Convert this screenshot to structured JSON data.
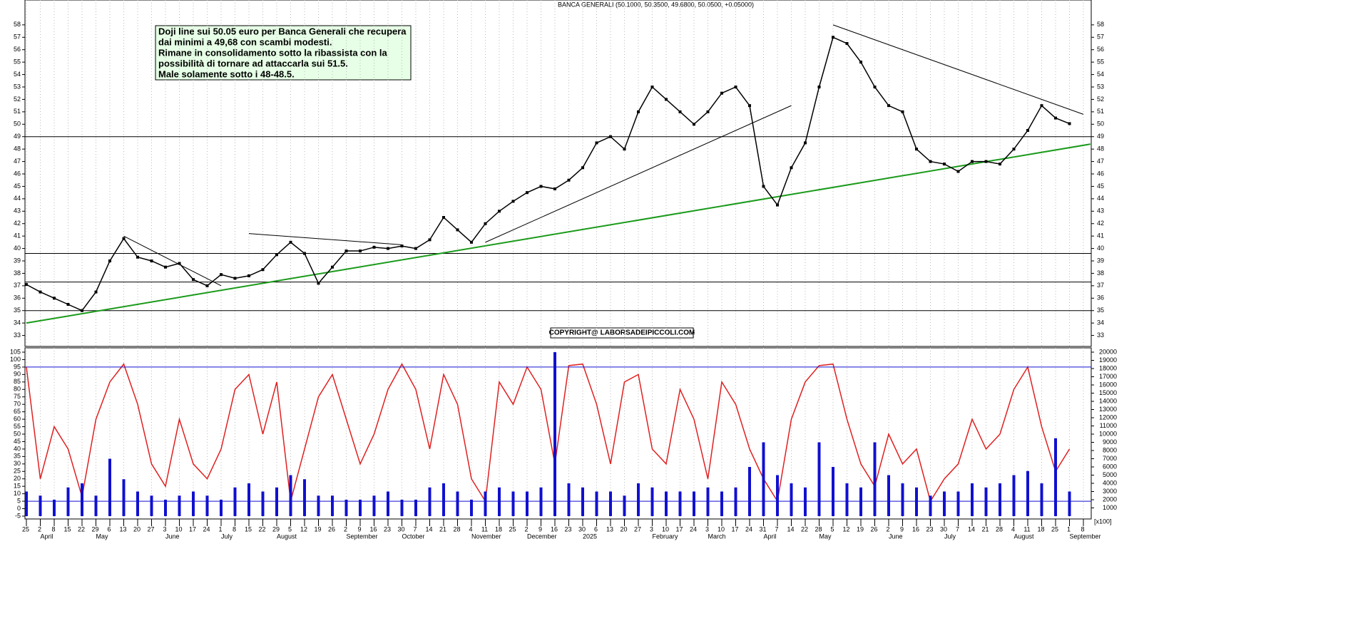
{
  "chart_data": [
    {
      "type": "line",
      "title": "BANCA GENERALI (50.1000, 50.3500, 49.6800, 50.0500, +0.05000)",
      "color": "#000000",
      "values": [
        37.1,
        36.5,
        36.0,
        35.5,
        35.0,
        36.5,
        39.0,
        40.8,
        39.3,
        39.0,
        38.5,
        38.8,
        37.5,
        37.0,
        37.9,
        37.6,
        37.8,
        38.3,
        39.5,
        40.5,
        39.6,
        37.2,
        38.5,
        39.8,
        39.8,
        40.1,
        40.0,
        40.2,
        40.0,
        40.7,
        42.5,
        41.5,
        40.5,
        42.0,
        43.0,
        43.8,
        44.5,
        45.0,
        44.8,
        45.5,
        46.5,
        48.5,
        49.0,
        48.0,
        51.0,
        53.0,
        52.0,
        51.0,
        50.0,
        51.0,
        52.5,
        53.0,
        51.5,
        45.0,
        43.5,
        46.5,
        48.5,
        53.0,
        57.0,
        56.5,
        55.0,
        53.0,
        51.5,
        51.0,
        48.0,
        47.0,
        46.8,
        46.2,
        47.0,
        47.0,
        46.8,
        48.0,
        49.5,
        51.5,
        50.5,
        50.05,
        null
      ],
      "ylim": [
        32,
        60
      ],
      "yticks": [
        33,
        34,
        35,
        36,
        37,
        38,
        39,
        40,
        41,
        42,
        43,
        44,
        45,
        46,
        47,
        48,
        49,
        50,
        51,
        52,
        53,
        54,
        55,
        56,
        57,
        58
      ],
      "levels": [
        39.6,
        37.3,
        35.0,
        49.0
      ],
      "trendlines": [
        {
          "color": "#1a9a1a",
          "points": [
            [
              0,
              34.0
            ],
            [
              76.5,
              48.4
            ]
          ]
        },
        {
          "color": "#000000",
          "points": [
            [
              33,
              40.5
            ],
            [
              55,
              51.5
            ]
          ]
        },
        {
          "color": "#000000",
          "points": [
            [
              58,
              58.0
            ],
            [
              76,
              50.8
            ]
          ]
        },
        {
          "color": "#000000",
          "points": [
            [
              7,
              41.0
            ],
            [
              14,
              37.0
            ]
          ]
        },
        {
          "color": "#000000",
          "points": [
            [
              16,
              41.2
            ],
            [
              27,
              40.3
            ]
          ]
        }
      ],
      "annotations": [
        "Doji line sui 50.05 euro per Banca Generali che recupera",
        "dai minimi a 49,68 con scambi modesti.",
        "Rimane in consolidamento sotto la ribassista con la",
        "possibilità di tornare ad attaccarla sui 51.5.",
        "Male solamente sotto i 48-48.5."
      ],
      "copyright": "COPYRIGHT@ LABORSADEIPICCOLI.COM"
    },
    {
      "type": "line",
      "categories": [
        "25",
        "2",
        "8",
        "15",
        "22",
        "29",
        "6",
        "13",
        "20",
        "27",
        "3",
        "10",
        "17",
        "24",
        "1",
        "8",
        "15",
        "22",
        "29",
        "5",
        "12",
        "19",
        "26",
        "2",
        "9",
        "16",
        "23",
        "30",
        "7",
        "14",
        "21",
        "28",
        "4",
        "11",
        "18",
        "25",
        "2",
        "9",
        "16",
        "23",
        "30",
        "6",
        "13",
        "20",
        "27",
        "3",
        "10",
        "17",
        "24",
        "3",
        "10",
        "17",
        "24",
        "31",
        "7",
        "14",
        "22",
        "28",
        "5",
        "12",
        "19",
        "26",
        "2",
        "9",
        "16",
        "23",
        "30",
        "7",
        "14",
        "21",
        "28",
        "4",
        "11",
        "18",
        "25",
        "1",
        "8"
      ],
      "month_labels": [
        {
          "label": "April",
          "at": 1
        },
        {
          "label": "May",
          "at": 5
        },
        {
          "label": "June",
          "at": 10
        },
        {
          "label": "July",
          "at": 14
        },
        {
          "label": "August",
          "at": 18
        },
        {
          "label": "September",
          "at": 23
        },
        {
          "label": "October",
          "at": 27
        },
        {
          "label": "November",
          "at": 32
        },
        {
          "label": "December",
          "at": 36
        },
        {
          "label": "2025",
          "at": 40
        },
        {
          "label": "February",
          "at": 45
        },
        {
          "label": "March",
          "at": 49
        },
        {
          "label": "April",
          "at": 53
        },
        {
          "label": "May",
          "at": 57
        },
        {
          "label": "June",
          "at": 62
        },
        {
          "label": "July",
          "at": 66
        },
        {
          "label": "August",
          "at": 71
        },
        {
          "label": "September",
          "at": 75
        }
      ],
      "series": [
        {
          "type": "line",
          "color": "#e02020",
          "values": [
            95,
            20,
            55,
            40,
            8,
            60,
            85,
            97,
            70,
            30,
            15,
            60,
            30,
            20,
            40,
            80,
            90,
            50,
            85,
            5,
            40,
            75,
            90,
            60,
            30,
            50,
            80,
            97,
            80,
            40,
            90,
            70,
            20,
            5,
            85,
            70,
            95,
            80,
            30,
            96,
            97,
            70,
            30,
            85,
            90,
            40,
            30,
            80,
            60,
            20,
            85,
            70,
            40,
            20,
            5,
            60,
            85,
            96,
            97,
            60,
            30,
            15,
            50,
            30,
            40,
            5,
            20,
            30,
            60,
            40,
            50,
            80,
            95,
            55,
            25,
            40,
            null
          ]
        },
        {
          "type": "bar",
          "axis": "y2",
          "color": "#1010d0",
          "values": [
            3000,
            2500,
            2000,
            3500,
            4000,
            2500,
            7000,
            4500,
            3000,
            2500,
            2000,
            2500,
            3000,
            2500,
            2000,
            3500,
            4000,
            3000,
            3500,
            5000,
            4500,
            2500,
            2500,
            2000,
            2000,
            2500,
            3000,
            2000,
            2000,
            3500,
            4000,
            3000,
            2000,
            3000,
            3500,
            3000,
            3000,
            3500,
            20000,
            4000,
            3500,
            3000,
            3000,
            2500,
            4000,
            3500,
            3000,
            3000,
            3000,
            3500,
            3000,
            3500,
            6000,
            9000,
            5000,
            4000,
            3500,
            9000,
            6000,
            4000,
            3500,
            9000,
            5000,
            4000,
            3500,
            2500,
            3000,
            3000,
            4000,
            3500,
            4000,
            5000,
            5500,
            4000,
            9500,
            3000,
            null
          ]
        }
      ],
      "levels": [
        95,
        5
      ],
      "ylim": [
        -5,
        105
      ],
      "yticks": [
        -5,
        0,
        5,
        10,
        15,
        20,
        25,
        30,
        35,
        40,
        45,
        50,
        55,
        60,
        65,
        70,
        75,
        80,
        85,
        90,
        95,
        100,
        105
      ],
      "y2lim": [
        0,
        20000
      ],
      "y2ticks": [
        1000,
        2000,
        3000,
        4000,
        5000,
        6000,
        7000,
        8000,
        9000,
        10000,
        11000,
        12000,
        13000,
        14000,
        15000,
        16000,
        17000,
        18000,
        19000,
        20000
      ],
      "y2label": "[x100]"
    }
  ]
}
